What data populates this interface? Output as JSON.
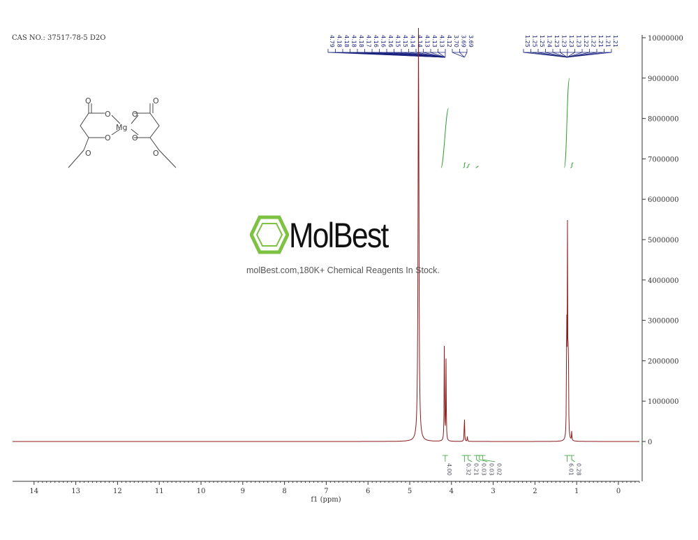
{
  "header": {
    "cas": "CAS NO.: 37517-78-5 D2O"
  },
  "watermark": {
    "brand": "MolBest",
    "tagline": "molBest.com,180K+ Chemical Reagents In Stock."
  },
  "molecule": {
    "atoms": [
      "O",
      "O",
      "Mg",
      "O",
      "O",
      "O",
      "O",
      "O",
      "O"
    ]
  },
  "colors": {
    "spectrum": "#8b1a1a",
    "peak_labels": "#1a237e",
    "integral": "#2e9e2e",
    "axis": "#333333"
  },
  "chart_data": {
    "type": "line",
    "xlabel": "f1 (ppm)",
    "xlim": [
      14.5,
      -0.5
    ],
    "x_reversed": true,
    "x_ticks": [
      "14",
      "13",
      "12",
      "11",
      "10",
      "9",
      "8",
      "7",
      "6",
      "5",
      "4",
      "3",
      "2",
      "1",
      "0"
    ],
    "ylim": [
      -1000000,
      10000000
    ],
    "y_ticks": [
      "0",
      "1000000",
      "2000000",
      "3000000",
      "4000000",
      "5000000",
      "6000000",
      "7000000",
      "8000000",
      "9000000",
      "10000000"
    ],
    "peaks": [
      {
        "ppm": 4.79,
        "height": 10500000
      },
      {
        "ppm": 4.17,
        "height": 2650000
      },
      {
        "ppm": 4.13,
        "height": 2000000
      },
      {
        "ppm": 3.69,
        "height": 650000
      },
      {
        "ppm": 3.62,
        "height": 120000
      },
      {
        "ppm": 1.24,
        "height": 3000000
      },
      {
        "ppm": 1.22,
        "height": 5100000
      },
      {
        "ppm": 1.2,
        "height": 2500000
      },
      {
        "ppm": 1.12,
        "height": 220000
      }
    ],
    "peak_labels_left": [
      "4.79",
      "4.18",
      "4.18",
      "4.18",
      "4.18",
      "4.17",
      "4.16",
      "4.16",
      "4.16",
      "4.15",
      "4.15",
      "4.14",
      "4.14",
      "4.13",
      "4.13",
      "4.13",
      "4.12"
    ],
    "peak_labels_mid": [
      "3.70",
      "3.69",
      "3.69"
    ],
    "peak_labels_right": [
      "1.25",
      "1.25",
      "1.25",
      "1.24",
      "1.23",
      "1.23",
      "1.23",
      "1.23",
      "1.22",
      "1.22",
      "1.21",
      "1.21",
      "1.21"
    ],
    "integrals": [
      {
        "ppm": 4.15,
        "value": "4.00"
      },
      {
        "ppm": 3.69,
        "value": "0.32"
      },
      {
        "ppm": 3.6,
        "value": "0.21"
      },
      {
        "ppm": 3.4,
        "value": "0.03"
      },
      {
        "ppm": 3.33,
        "value": "0.03"
      },
      {
        "ppm": 3.25,
        "value": "0.02"
      },
      {
        "ppm": 1.23,
        "value": "6.01"
      },
      {
        "ppm": 1.12,
        "value": "0.28"
      }
    ]
  }
}
